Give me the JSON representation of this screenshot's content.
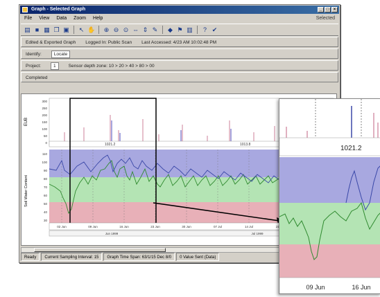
{
  "window": {
    "title": "Graph - Selected Graph",
    "menu": [
      "File",
      "View",
      "Data",
      "Zoom",
      "Help"
    ],
    "menu_right": "Selected",
    "toolbar_icons": [
      "new-icon",
      "save-icon",
      "print-icon",
      "copy-icon",
      "paste-icon",
      "cursor-icon",
      "hand-icon",
      "zoom-in-icon",
      "zoom-out-icon",
      "zoom-fit-icon",
      "zoom-x-icon",
      "zoom-y-icon",
      "annotate-icon",
      "marker-icon",
      "flag-icon",
      "chart-icon",
      "help-icon",
      "pin-icon"
    ]
  },
  "info": {
    "row1": [
      "Edited & Exported Graph",
      "Logged In: Public Scan",
      "Last Accessed: 4/23 AM 10:02:48 PM"
    ],
    "row2_label": "Identify:",
    "row2_value": "Locate",
    "row3_label": "Project:",
    "row3_value": "1",
    "row3_text": "Sensor depth zone: 10 > 20 > 40 > 80 > 00",
    "row4": "Completed"
  },
  "chart": {
    "top_ylabel": "EUB",
    "top_ticks": [
      "300",
      "250",
      "200",
      "150",
      "100",
      "50",
      "0"
    ],
    "top_markers": [
      "1021.2",
      "1013.8"
    ],
    "bottom_ylabel": "Soil Water Content",
    "bottom_ticks": [
      "110",
      "100",
      "90",
      "80",
      "70",
      "60",
      "50",
      "40",
      "30"
    ],
    "x_ticks": [
      "02 Jun",
      "09 Jun",
      "16 Jun",
      "23 Jun",
      "30 Jun",
      "07 Jul",
      "14 Jul",
      "21 Jul"
    ],
    "x_group_labels": [
      "Jun 1999",
      "Jul 1999"
    ],
    "bands": {
      "upper": "#a8a8e0",
      "middle": "#b4e4b4",
      "lower": "#e8b0b8"
    }
  },
  "zoom": {
    "marker_label": "1021.2",
    "x_ticks": [
      "09 Jun",
      "16 Jun"
    ]
  },
  "status": [
    "Ready",
    "Current Sampling Interval: 15",
    "Graph Time Span: 63/1/15 Dec 8/0",
    "0 Value Sent (Data)"
  ]
}
